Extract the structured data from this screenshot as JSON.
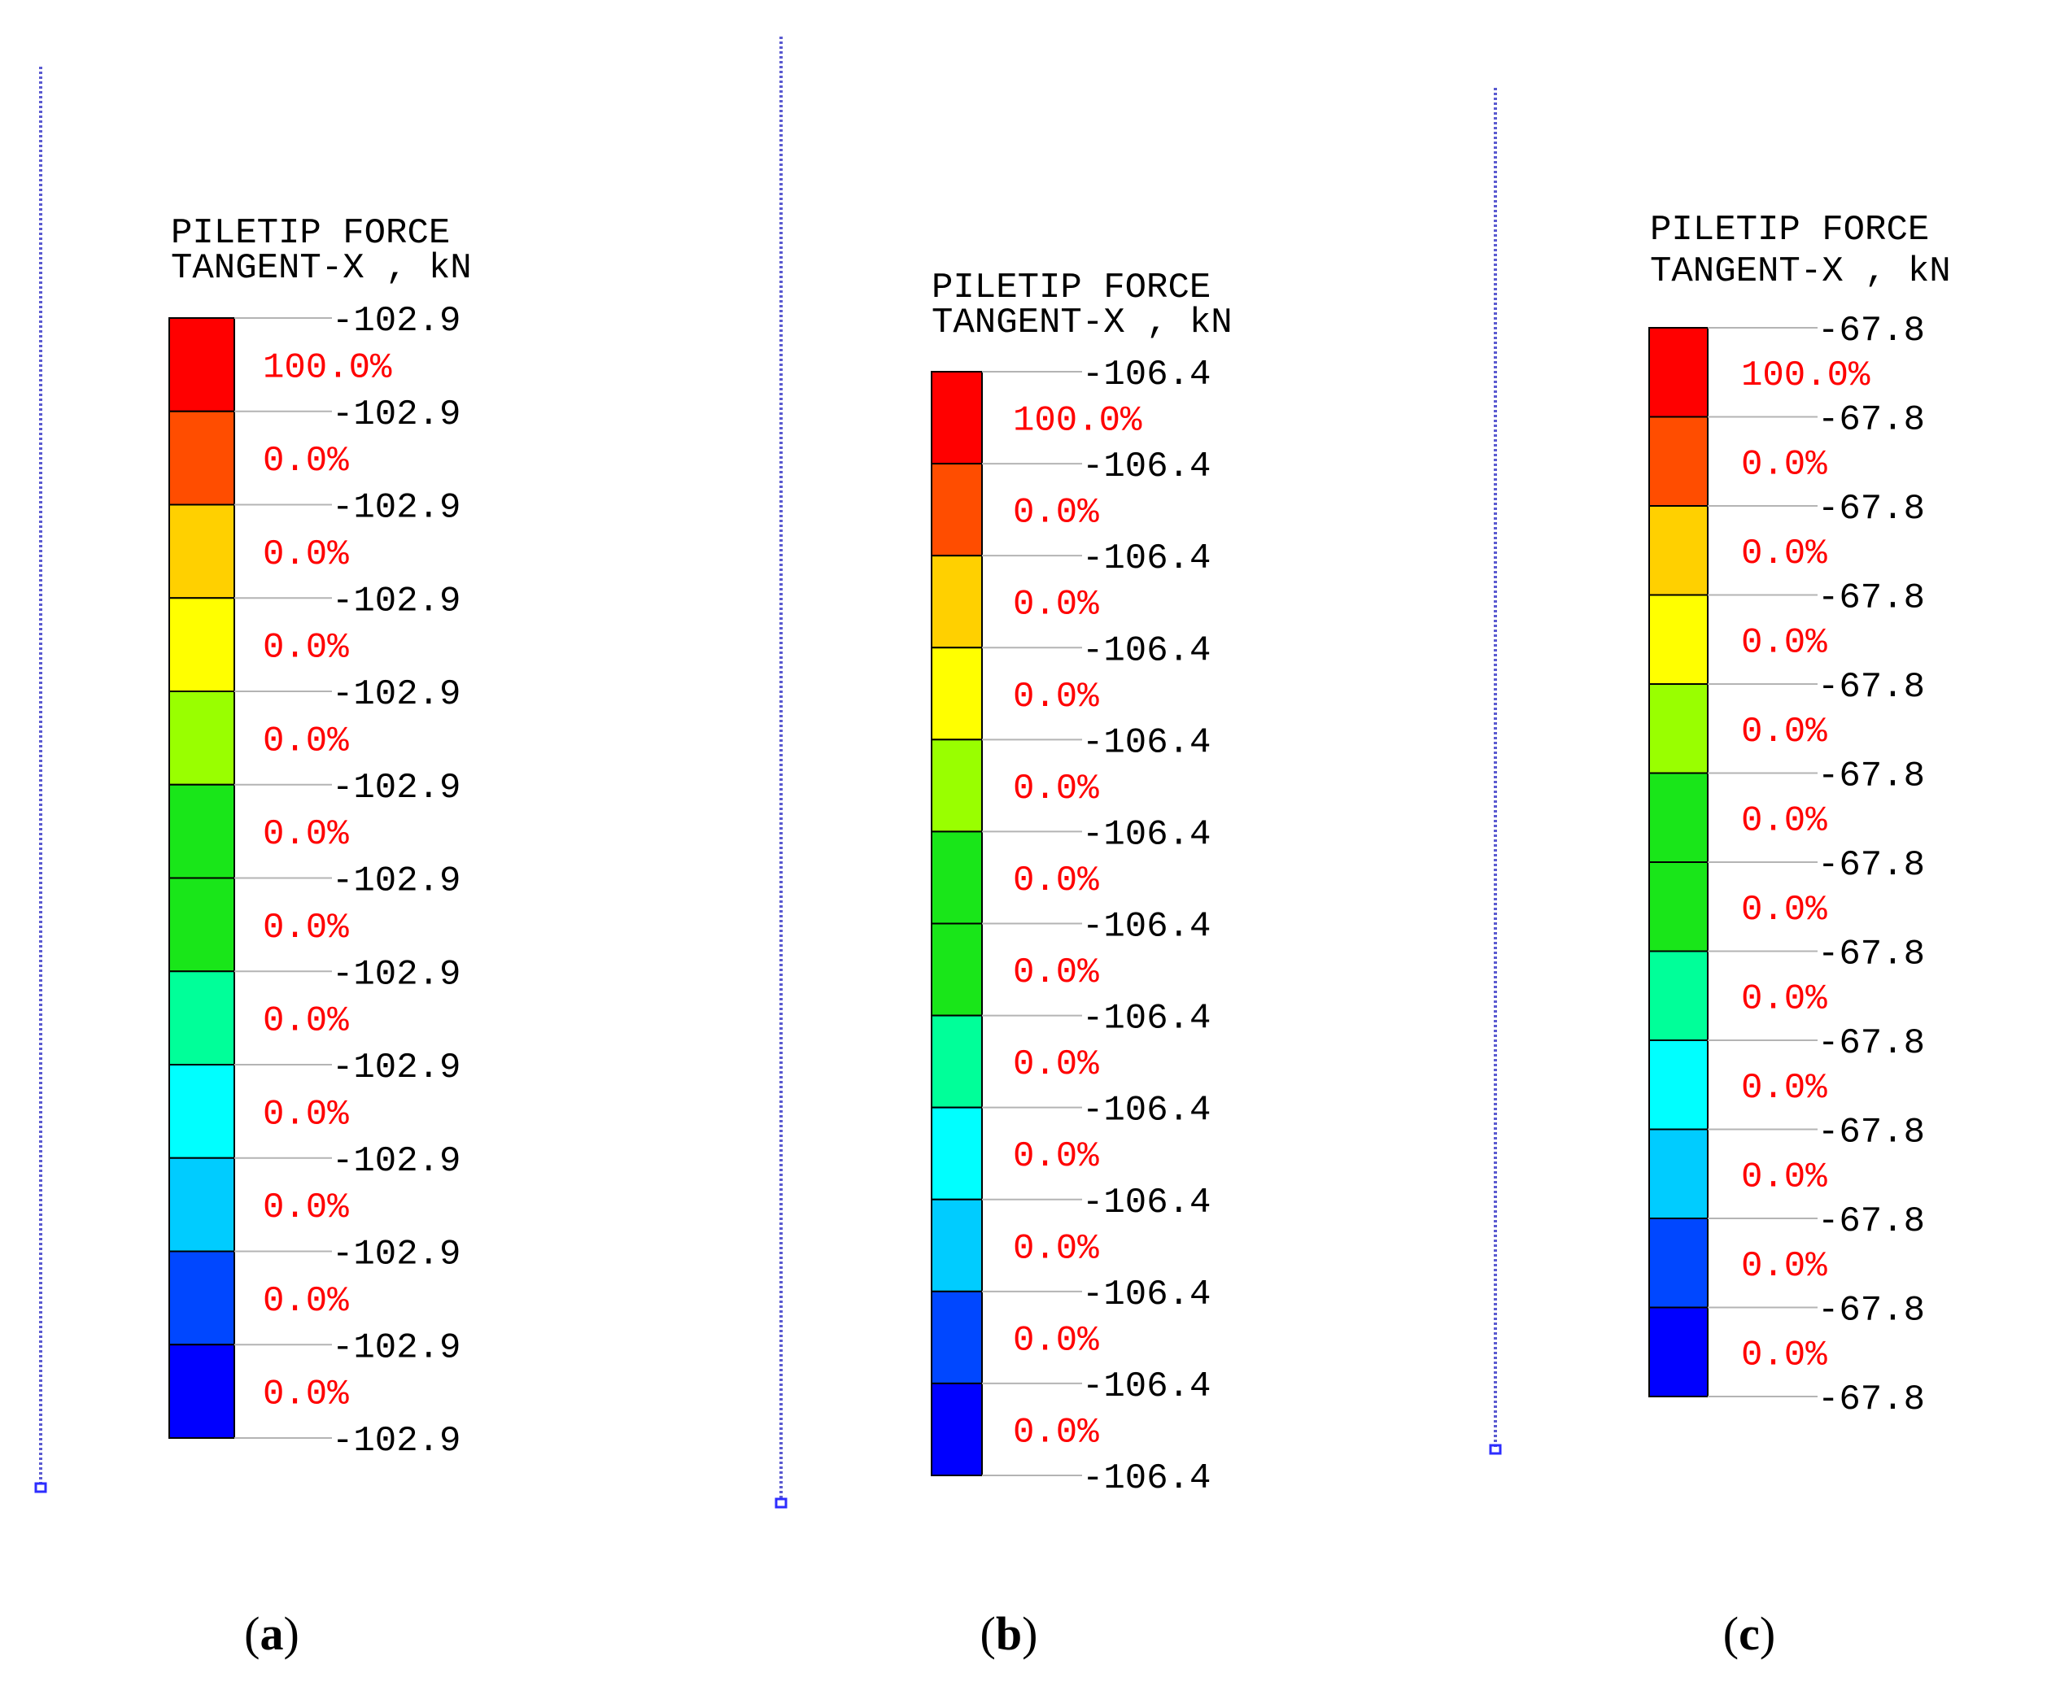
{
  "colors": {
    "scale": [
      "#ff0000",
      "#ff4d00",
      "#ffd000",
      "#ffff00",
      "#99ff00",
      "#19e619",
      "#19e619",
      "#00ff99",
      "#00ffff",
      "#00ccff",
      "#0047ff",
      "#0000ff"
    ],
    "percent_text": "#ff0000",
    "pile_line": "#5a5ad0",
    "tick": "#b4b4b4"
  },
  "panels": [
    {
      "title_line1": "PILETIP FORCE",
      "title_line2": "TANGENT-X , kN",
      "values": [
        "-102.9",
        "-102.9",
        "-102.9",
        "-102.9",
        "-102.9",
        "-102.9",
        "-102.9",
        "-102.9",
        "-102.9",
        "-102.9",
        "-102.9",
        "-102.9",
        "-102.9"
      ],
      "percents": [
        "100.0%",
        "0.0%",
        "0.0%",
        "0.0%",
        "0.0%",
        "0.0%",
        "0.0%",
        "0.0%",
        "0.0%",
        "0.0%",
        "0.0%",
        "0.0%"
      ],
      "caption_letter": "a"
    },
    {
      "title_line1": "PILETIP FORCE",
      "title_line2": "TANGENT-X , kN",
      "values": [
        "-106.4",
        "-106.4",
        "-106.4",
        "-106.4",
        "-106.4",
        "-106.4",
        "-106.4",
        "-106.4",
        "-106.4",
        "-106.4",
        "-106.4",
        "-106.4",
        "-106.4"
      ],
      "percents": [
        "100.0%",
        "0.0%",
        "0.0%",
        "0.0%",
        "0.0%",
        "0.0%",
        "0.0%",
        "0.0%",
        "0.0%",
        "0.0%",
        "0.0%",
        "0.0%"
      ],
      "caption_letter": "b"
    },
    {
      "title_line1": "PILETIP FORCE",
      "title_line2": "TANGENT-X , kN",
      "values": [
        "-67.8",
        "-67.8",
        "-67.8",
        "-67.8",
        "-67.8",
        "-67.8",
        "-67.8",
        "-67.8",
        "-67.8",
        "-67.8",
        "-67.8",
        "-67.8",
        "-67.8"
      ],
      "percents": [
        "100.0%",
        "0.0%",
        "0.0%",
        "0.0%",
        "0.0%",
        "0.0%",
        "0.0%",
        "0.0%",
        "0.0%",
        "0.0%",
        "0.0%",
        "0.0%"
      ],
      "caption_letter": "c"
    }
  ]
}
